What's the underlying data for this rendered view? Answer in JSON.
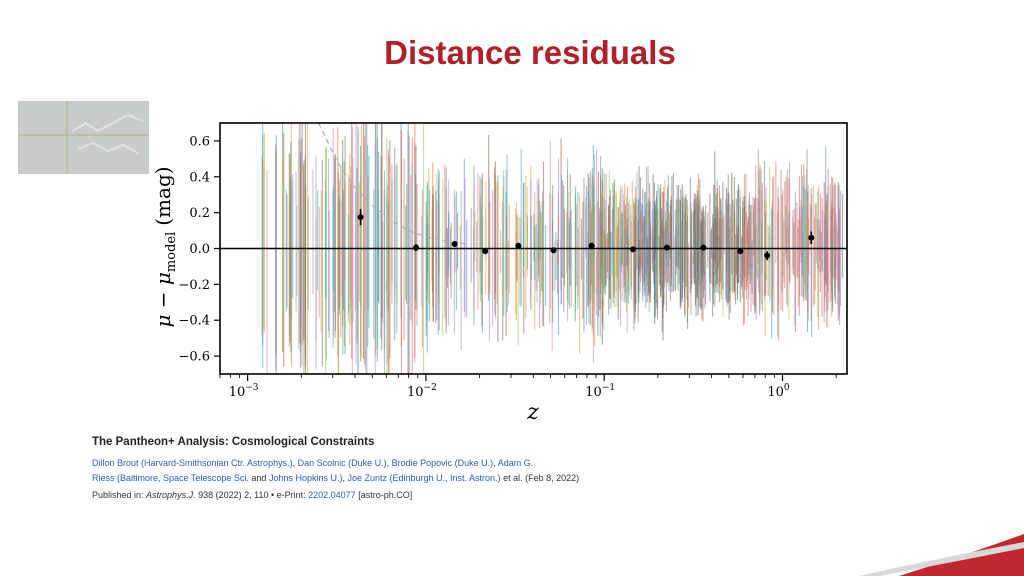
{
  "slide": {
    "title": "Distance residuals"
  },
  "colors": {
    "title": "#b0202a",
    "author_link": "#2a5db0",
    "corner_accent": "#c0282e"
  },
  "chart_data": {
    "type": "scatter",
    "title": "",
    "xlabel": "z",
    "ylabel_main": "μ − μ",
    "ylabel_sub": "model",
    "ylabel_unit": "(mag)",
    "x_scale": "log",
    "xlim": [
      0.0007,
      2.3
    ],
    "ylim": [
      -0.7,
      0.7
    ],
    "x_ticks": [
      {
        "value": 0.001,
        "base": "10",
        "exp": "−3"
      },
      {
        "value": 0.01,
        "base": "10",
        "exp": "−2"
      },
      {
        "value": 0.1,
        "base": "10",
        "exp": "−1"
      },
      {
        "value": 1,
        "base": "10",
        "exp": "0"
      }
    ],
    "y_ticks": [
      {
        "value": 0.6,
        "label": "0.6"
      },
      {
        "value": 0.4,
        "label": "0.4"
      },
      {
        "value": 0.2,
        "label": "0.2"
      },
      {
        "value": 0.0,
        "label": "0.0"
      },
      {
        "value": -0.2,
        "label": "−0.2"
      },
      {
        "value": -0.4,
        "label": "−0.4"
      },
      {
        "value": -0.6,
        "label": "−0.6"
      }
    ],
    "zero_line": 0,
    "binned_points": [
      {
        "z": 0.0043,
        "residual": 0.175,
        "err": 0.045
      },
      {
        "z": 0.0088,
        "residual": 0.005,
        "err": 0.02
      },
      {
        "z": 0.0145,
        "residual": 0.025,
        "err": 0.015
      },
      {
        "z": 0.0215,
        "residual": -0.015,
        "err": 0.01
      },
      {
        "z": 0.033,
        "residual": 0.015,
        "err": 0.01
      },
      {
        "z": 0.052,
        "residual": -0.01,
        "err": 0.01
      },
      {
        "z": 0.085,
        "residual": 0.015,
        "err": 0.01
      },
      {
        "z": 0.145,
        "residual": -0.005,
        "err": 0.008
      },
      {
        "z": 0.225,
        "residual": 0.005,
        "err": 0.008
      },
      {
        "z": 0.36,
        "residual": 0.005,
        "err": 0.008
      },
      {
        "z": 0.58,
        "residual": -0.015,
        "err": 0.01
      },
      {
        "z": 0.82,
        "residual": -0.04,
        "err": 0.025
      },
      {
        "z": 1.45,
        "residual": 0.06,
        "err": 0.035
      }
    ],
    "dashed_curve": [
      {
        "z": 0.0025,
        "residual": 0.7
      },
      {
        "z": 0.0032,
        "residual": 0.48
      },
      {
        "z": 0.004,
        "residual": 0.34
      },
      {
        "z": 0.005,
        "residual": 0.24
      },
      {
        "z": 0.0065,
        "residual": 0.15
      },
      {
        "z": 0.008,
        "residual": 0.1
      },
      {
        "z": 0.01,
        "residual": 0.065
      },
      {
        "z": 0.013,
        "residual": 0.04
      },
      {
        "z": 0.017,
        "residual": 0.025
      }
    ],
    "sn_error_bars": {
      "description_colors": [
        "#3fb3b3",
        "#e6a23c",
        "#9ad26b",
        "#6a8fd8",
        "#d98bb0",
        "#b48fd8",
        "#8c6d5a",
        "#7d7d7d",
        "#c97a7a",
        "#5aa06a",
        "#e07a4a",
        "#a0a0a0"
      ],
      "note": ""
    }
  },
  "citation": {
    "title": "The Pantheon+ Analysis: Cosmological Constraints",
    "line1": [
      {
        "t": "Dillon Brout (Harvard-Smithsonian Ctr. Astrophys.)",
        "link": true
      },
      {
        "t": ", ",
        "link": false
      },
      {
        "t": "Dan Scolnic (Duke U.)",
        "link": true
      },
      {
        "t": ", ",
        "link": false
      },
      {
        "t": "Brodie Popovic (Duke U.)",
        "link": true
      },
      {
        "t": ", ",
        "link": false
      },
      {
        "t": "Adam G.",
        "link": true
      }
    ],
    "line2": [
      {
        "t": "Riess (Baltimore, Space Telescope Sci.",
        "link": true
      },
      {
        "t": " and ",
        "link": false
      },
      {
        "t": "Johns Hopkins U.)",
        "link": true
      },
      {
        "t": ", ",
        "link": false
      },
      {
        "t": "Joe Zuntz (Edinburgh U., Inst. Astron.)",
        "link": true
      },
      {
        "t": " et al. (Feb 8, 2022)",
        "link": false
      }
    ],
    "published_prefix": "Published in: ",
    "journal": "Astrophys.J.",
    "volume_info": " 938 (2022) 2, 110 • e-Print: ",
    "eprint": "2202.04077",
    "eprint_category": " [astro-ph.CO]"
  }
}
